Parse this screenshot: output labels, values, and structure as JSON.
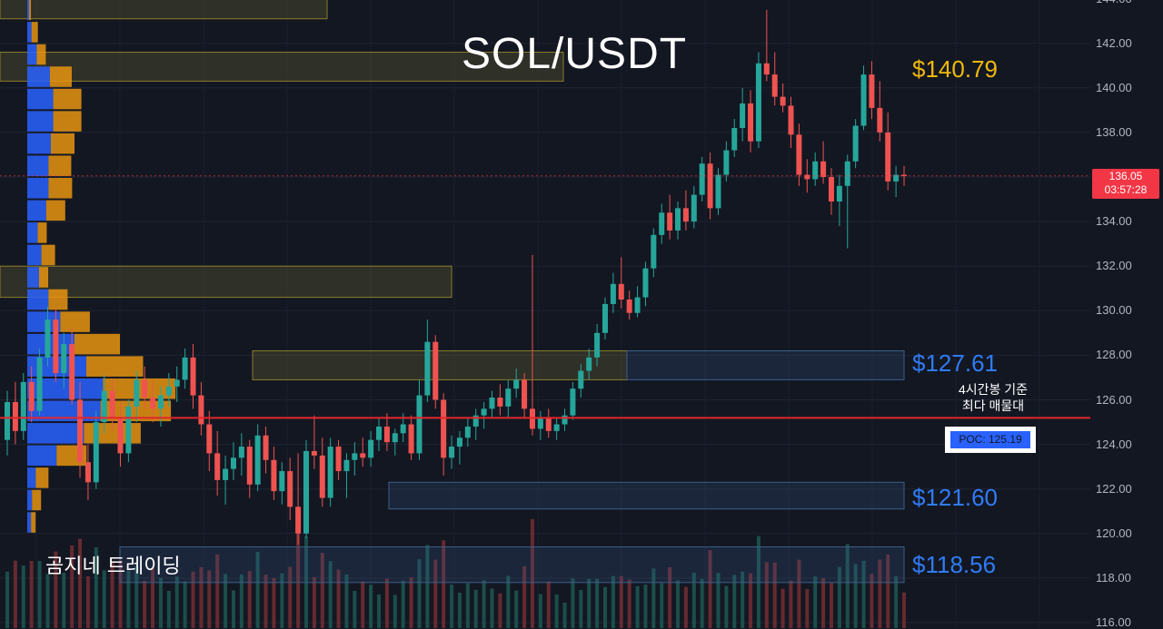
{
  "title": "SOL/USDT",
  "watermark": "곰지네 트레이딩",
  "current_price": {
    "price": "136.05",
    "countdown": "03:57:28"
  },
  "poc": {
    "note_line1": "4시간봉 기준",
    "note_line2": "최다 매물대",
    "label": "POC: 125.19",
    "value": 125.19
  },
  "zone_labels": [
    {
      "text": "$140.79",
      "value": 140.79,
      "color": "#f0b90b"
    },
    {
      "text": "$127.61",
      "value": 127.61,
      "color": "#2f7cf6"
    },
    {
      "text": "$121.60",
      "value": 121.6,
      "color": "#2f7cf6"
    },
    {
      "text": "$118.56",
      "value": 118.56,
      "color": "#2f7cf6"
    }
  ],
  "colors": {
    "background": "#131722",
    "up": "#26a69a",
    "down": "#ef5350",
    "poc_line": "#e2262b",
    "profile_blue": "#2962ff",
    "profile_orange": "#e8940f"
  },
  "chart_data": {
    "type": "candlestick",
    "title": "SOL/USDT",
    "timeframe_note": "4시간봉",
    "ylim": [
      116,
      144
    ],
    "y_ticks": [
      "144.00",
      "142.00",
      "140.00",
      "138.00",
      "136.00",
      "134.00",
      "132.00",
      "130.00",
      "128.00",
      "126.00",
      "124.00",
      "122.00",
      "120.00",
      "118.00",
      "116.00"
    ],
    "grid": true,
    "price_line": 136.05,
    "poc_line": 125.19,
    "zones": [
      {
        "type": "supply",
        "from": 143.1,
        "to": 144.6
      },
      {
        "type": "supply",
        "from": 140.3,
        "to": 141.6
      },
      {
        "type": "supply",
        "from": 130.6,
        "to": 132.0
      },
      {
        "type": "supply",
        "from": 126.9,
        "to": 128.2
      },
      {
        "type": "demand",
        "from": 126.9,
        "to": 128.2
      },
      {
        "type": "demand",
        "from": 121.1,
        "to": 122.3
      },
      {
        "type": "demand",
        "from": 117.8,
        "to": 119.4
      }
    ],
    "volume_profile": [
      {
        "price": 143.0,
        "buy": 4,
        "sell": 4
      },
      {
        "price": 142.0,
        "buy": 9,
        "sell": 14
      },
      {
        "price": 141.0,
        "buy": 20,
        "sell": 20
      },
      {
        "price": 140.0,
        "buy": 48,
        "sell": 48
      },
      {
        "price": 139.0,
        "buy": 55,
        "sell": 62
      },
      {
        "price": 138.0,
        "buy": 55,
        "sell": 62
      },
      {
        "price": 137.0,
        "buy": 50,
        "sell": 52
      },
      {
        "price": 136.0,
        "buy": 45,
        "sell": 50
      },
      {
        "price": 135.0,
        "buy": 45,
        "sell": 52
      },
      {
        "price": 134.0,
        "buy": 40,
        "sell": 42
      },
      {
        "price": 133.0,
        "buy": 22,
        "sell": 20
      },
      {
        "price": 132.0,
        "buy": 30,
        "sell": 30
      },
      {
        "price": 131.0,
        "buy": 25,
        "sell": 20
      },
      {
        "price": 130.0,
        "buy": 45,
        "sell": 42
      },
      {
        "price": 129.0,
        "buy": 70,
        "sell": 65
      },
      {
        "price": 128.0,
        "buy": 100,
        "sell": 100
      },
      {
        "price": 127.0,
        "buy": 125,
        "sell": 125
      },
      {
        "price": 126.0,
        "buy": 160,
        "sell": 160
      },
      {
        "price": 125.0,
        "buy": 155,
        "sell": 155
      },
      {
        "price": 124.0,
        "buy": 120,
        "sell": 125
      },
      {
        "price": 123.0,
        "buy": 62,
        "sell": 66
      },
      {
        "price": 122.0,
        "buy": 18,
        "sell": 28
      },
      {
        "price": 121.0,
        "buy": 10,
        "sell": 20
      },
      {
        "price": 120.0,
        "buy": 8,
        "sell": 10
      }
    ],
    "candles": [
      [
        124.2,
        126.4,
        123.5,
        125.9
      ],
      [
        125.9,
        126.8,
        124.0,
        124.6
      ],
      [
        124.6,
        127.2,
        124.2,
        126.8
      ],
      [
        126.8,
        127.5,
        125.0,
        125.5
      ],
      [
        125.5,
        128.3,
        125.3,
        127.9
      ],
      [
        127.9,
        130.2,
        127.5,
        129.6
      ],
      [
        129.6,
        130.1,
        126.8,
        127.2
      ],
      [
        127.2,
        129.0,
        126.5,
        128.5
      ],
      [
        128.5,
        129.2,
        125.8,
        126.0
      ],
      [
        126.0,
        126.8,
        122.5,
        123.2
      ],
      [
        123.2,
        124.0,
        121.5,
        122.3
      ],
      [
        122.3,
        125.5,
        122.0,
        125.0
      ],
      [
        125.0,
        127.1,
        124.5,
        126.4
      ],
      [
        126.4,
        126.9,
        124.6,
        125.2
      ],
      [
        125.2,
        125.9,
        123.0,
        123.6
      ],
      [
        123.6,
        126.0,
        123.2,
        125.7
      ],
      [
        125.7,
        127.3,
        125.0,
        126.9
      ],
      [
        126.9,
        127.5,
        125.6,
        126.1
      ],
      [
        126.1,
        126.9,
        125.0,
        125.6
      ],
      [
        125.6,
        126.6,
        124.8,
        126.2
      ],
      [
        126.2,
        127.2,
        125.7,
        126.6
      ],
      [
        126.6,
        127.5,
        125.9,
        126.9
      ],
      [
        126.9,
        128.3,
        126.5,
        127.9
      ],
      [
        127.9,
        128.5,
        125.6,
        126.2
      ],
      [
        126.2,
        126.8,
        124.4,
        124.9
      ],
      [
        124.9,
        125.5,
        122.8,
        123.6
      ],
      [
        123.6,
        124.6,
        121.7,
        122.4
      ],
      [
        122.4,
        123.5,
        121.3,
        122.9
      ],
      [
        122.9,
        124.1,
        122.4,
        123.4
      ],
      [
        123.4,
        124.5,
        122.6,
        123.9
      ],
      [
        123.9,
        124.2,
        121.6,
        122.2
      ],
      [
        122.2,
        124.9,
        121.9,
        124.4
      ],
      [
        124.4,
        124.8,
        122.7,
        123.3
      ],
      [
        123.3,
        123.9,
        121.5,
        121.9
      ],
      [
        121.9,
        123.2,
        121.3,
        122.8
      ],
      [
        122.8,
        123.4,
        120.6,
        121.2
      ],
      [
        121.2,
        123.6,
        119.5,
        120.0
      ],
      [
        120.0,
        124.2,
        119.8,
        123.7
      ],
      [
        123.7,
        125.3,
        122.9,
        123.5
      ],
      [
        123.5,
        124.3,
        121.2,
        121.6
      ],
      [
        121.6,
        124.3,
        121.2,
        123.9
      ],
      [
        123.9,
        124.2,
        122.4,
        122.8
      ],
      [
        122.8,
        123.6,
        121.6,
        123.3
      ],
      [
        123.3,
        124.1,
        122.6,
        123.6
      ],
      [
        123.6,
        124.3,
        123.0,
        123.4
      ],
      [
        123.4,
        124.6,
        123.0,
        124.2
      ],
      [
        124.2,
        125.2,
        123.7,
        124.8
      ],
      [
        124.8,
        125.4,
        123.7,
        124.1
      ],
      [
        124.1,
        124.7,
        123.5,
        124.5
      ],
      [
        124.5,
        125.4,
        124.1,
        124.9
      ],
      [
        124.9,
        125.3,
        123.3,
        123.6
      ],
      [
        123.6,
        126.9,
        123.3,
        126.2
      ],
      [
        126.2,
        129.6,
        125.9,
        128.6
      ],
      [
        128.6,
        128.9,
        125.6,
        126.0
      ],
      [
        126.0,
        126.3,
        122.6,
        123.4
      ],
      [
        123.4,
        124.4,
        122.9,
        123.9
      ],
      [
        123.9,
        124.6,
        123.1,
        124.3
      ],
      [
        124.3,
        125.2,
        123.9,
        124.8
      ],
      [
        124.8,
        125.6,
        124.2,
        125.3
      ],
      [
        125.3,
        125.9,
        124.7,
        125.6
      ],
      [
        125.6,
        126.4,
        125.2,
        126.1
      ],
      [
        126.1,
        126.7,
        125.3,
        125.7
      ],
      [
        125.7,
        126.9,
        125.2,
        126.5
      ],
      [
        126.5,
        127.4,
        126.1,
        126.9
      ],
      [
        126.9,
        127.2,
        125.2,
        125.6
      ],
      [
        125.6,
        132.5,
        124.4,
        124.7
      ],
      [
        124.7,
        125.5,
        124.2,
        125.2
      ],
      [
        125.2,
        125.6,
        124.3,
        124.6
      ],
      [
        124.6,
        125.2,
        124.2,
        124.9
      ],
      [
        124.9,
        125.6,
        124.6,
        125.3
      ],
      [
        125.3,
        126.8,
        125.1,
        126.5
      ],
      [
        126.5,
        127.6,
        126.1,
        127.3
      ],
      [
        127.3,
        128.3,
        126.9,
        127.9
      ],
      [
        127.9,
        129.4,
        127.5,
        129.0
      ],
      [
        129.0,
        130.6,
        128.7,
        130.3
      ],
      [
        130.3,
        131.7,
        129.9,
        131.2
      ],
      [
        131.2,
        132.4,
        130.1,
        130.5
      ],
      [
        130.5,
        130.9,
        129.6,
        129.9
      ],
      [
        129.9,
        131.1,
        129.7,
        130.6
      ],
      [
        130.6,
        132.2,
        130.2,
        131.9
      ],
      [
        131.9,
        133.7,
        131.5,
        133.4
      ],
      [
        133.4,
        134.8,
        133.0,
        134.4
      ],
      [
        134.4,
        135.2,
        133.2,
        133.6
      ],
      [
        133.6,
        134.9,
        133.2,
        134.6
      ],
      [
        134.6,
        135.4,
        133.6,
        134.0
      ],
      [
        134.0,
        135.6,
        133.7,
        135.2
      ],
      [
        135.2,
        136.9,
        134.9,
        136.6
      ],
      [
        136.6,
        137.1,
        134.1,
        134.6
      ],
      [
        134.6,
        136.4,
        134.3,
        136.1
      ],
      [
        136.1,
        137.6,
        135.8,
        137.2
      ],
      [
        137.2,
        138.6,
        136.9,
        138.2
      ],
      [
        138.2,
        140.0,
        137.6,
        139.3
      ],
      [
        139.3,
        139.9,
        137.1,
        137.6
      ],
      [
        137.6,
        141.6,
        137.3,
        141.1
      ],
      [
        141.1,
        143.5,
        140.3,
        140.6
      ],
      [
        140.6,
        141.6,
        139.2,
        139.6
      ],
      [
        139.6,
        140.2,
        138.9,
        139.2
      ],
      [
        139.2,
        139.6,
        137.3,
        137.9
      ],
      [
        137.9,
        138.4,
        135.6,
        136.1
      ],
      [
        136.1,
        136.8,
        135.3,
        135.9
      ],
      [
        135.9,
        137.1,
        135.6,
        136.7
      ],
      [
        136.7,
        137.6,
        135.7,
        136.0
      ],
      [
        136.0,
        136.4,
        134.3,
        134.9
      ],
      [
        134.9,
        136.1,
        133.8,
        135.6
      ],
      [
        135.6,
        137.0,
        132.8,
        136.7
      ],
      [
        136.7,
        138.6,
        136.4,
        138.3
      ],
      [
        138.3,
        141.0,
        138.1,
        140.6
      ],
      [
        140.6,
        141.2,
        138.6,
        139.1
      ],
      [
        139.1,
        140.3,
        137.6,
        138.0
      ],
      [
        138.0,
        138.9,
        135.4,
        135.8
      ],
      [
        135.8,
        136.5,
        135.1,
        136.1
      ],
      [
        136.1,
        136.5,
        135.6,
        136.05
      ]
    ]
  }
}
